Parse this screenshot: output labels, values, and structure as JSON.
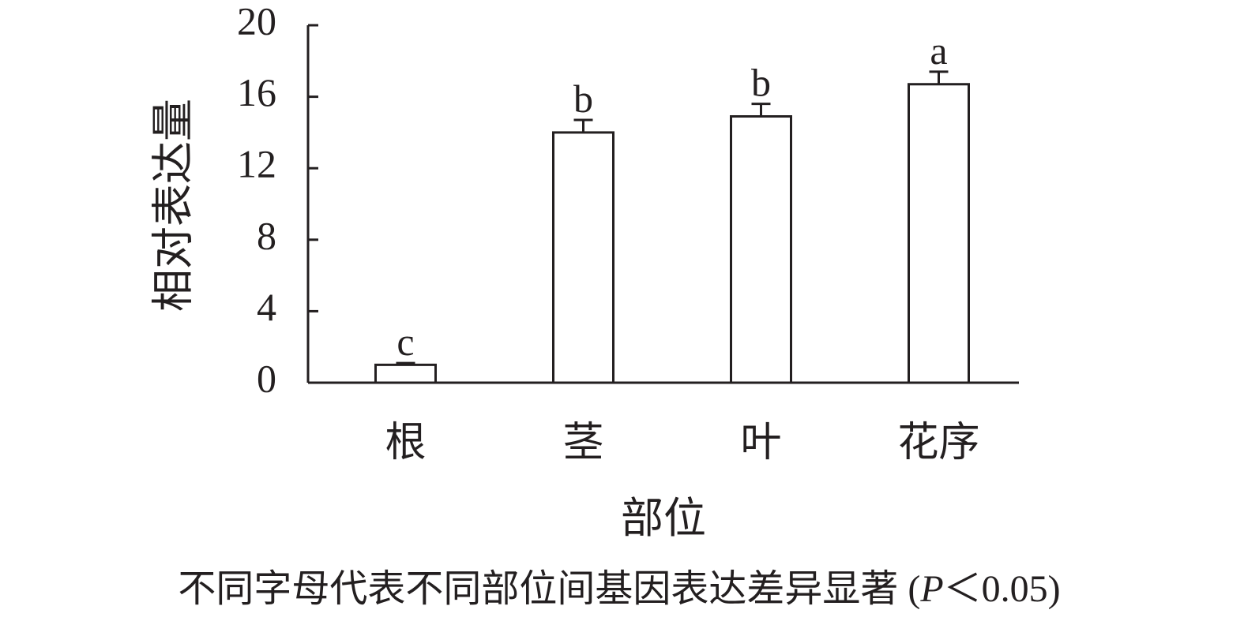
{
  "chart_data": {
    "type": "bar",
    "y_label": "相对表达量",
    "x_label": "部位",
    "categories": [
      "根",
      "茎",
      "叶",
      "花序"
    ],
    "values": [
      1.0,
      14.0,
      14.9,
      16.7
    ],
    "errors": [
      0.1,
      0.7,
      0.7,
      0.7
    ],
    "letters": [
      "c",
      "b",
      "b",
      "a"
    ],
    "color": "#ffffff",
    "ylim": [
      0,
      20
    ],
    "yticks": [
      0,
      4,
      8,
      12,
      16,
      20
    ],
    "grid": false,
    "caption": [
      "不同字母代表不同部位间基因表达差异显著 (",
      "P",
      "＜0.05)"
    ]
  }
}
